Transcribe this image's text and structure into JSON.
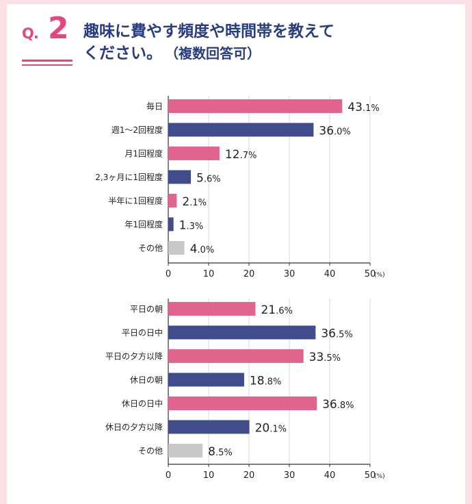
{
  "header": {
    "q_prefix": "Q.",
    "q_number": "2",
    "title_line1": "趣味に費やす頻度や時間帯を教えて",
    "title_line2": "ください。",
    "title_note": "（複数回答可）"
  },
  "colors": {
    "pink": "#e0648c",
    "navy": "#414c8c",
    "gray": "#c8c8c8",
    "axis": "#333333"
  },
  "chart_data": [
    {
      "type": "bar",
      "orientation": "horizontal",
      "categories": [
        "毎日",
        "週1〜2回程度",
        "月1回程度",
        "2,3ヶ月に1回程度",
        "半年に1回程度",
        "年1回程度",
        "その他"
      ],
      "values": [
        43.1,
        36.0,
        12.7,
        5.6,
        2.1,
        1.3,
        4.0
      ],
      "value_labels": [
        {
          "int": "43",
          "dec": ".1%"
        },
        {
          "int": "36",
          "dec": ".0%"
        },
        {
          "int": "12",
          "dec": ".7%"
        },
        {
          "int": "5",
          "dec": ".6%"
        },
        {
          "int": "2",
          "dec": ".1%"
        },
        {
          "int": "1",
          "dec": ".3%"
        },
        {
          "int": "4",
          "dec": ".0%"
        }
      ],
      "bar_colors": [
        "pink",
        "navy",
        "pink",
        "navy",
        "pink",
        "navy",
        "gray"
      ],
      "xlim": [
        0,
        50
      ],
      "xticks": [
        "0",
        "10",
        "20",
        "30",
        "40",
        "50"
      ],
      "unit_label": "(%)"
    },
    {
      "type": "bar",
      "orientation": "horizontal",
      "categories": [
        "平日の朝",
        "平日の日中",
        "平日の夕方以降",
        "休日の朝",
        "休日の日中",
        "休日の夕方以降",
        "その他"
      ],
      "values": [
        21.6,
        36.5,
        33.5,
        18.8,
        36.8,
        20.1,
        8.5
      ],
      "value_labels": [
        {
          "int": "21",
          "dec": ".6%"
        },
        {
          "int": "36",
          "dec": ".5%"
        },
        {
          "int": "33",
          "dec": ".5%"
        },
        {
          "int": "18",
          "dec": ".8%"
        },
        {
          "int": "36",
          "dec": ".8%"
        },
        {
          "int": "20",
          "dec": ".1%"
        },
        {
          "int": "8",
          "dec": ".5%"
        }
      ],
      "bar_colors": [
        "pink",
        "navy",
        "pink",
        "navy",
        "pink",
        "navy",
        "gray"
      ],
      "xlim": [
        0,
        50
      ],
      "xticks": [
        "0",
        "10",
        "20",
        "30",
        "40",
        "50"
      ],
      "unit_label": "(%)"
    }
  ]
}
